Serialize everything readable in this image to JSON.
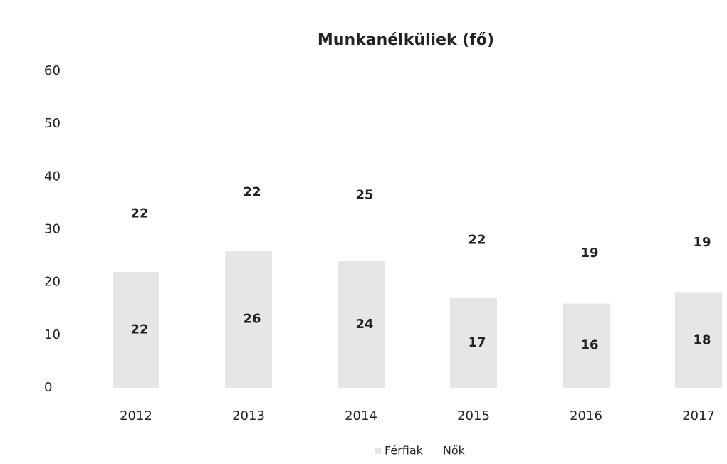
{
  "chart_data": {
    "type": "stacked_bar",
    "title": "Munkanélküliek (fő)",
    "categories": [
      "2012",
      "2013",
      "2014",
      "2015",
      "2016",
      "2017"
    ],
    "series": [
      {
        "name": "Férfiak",
        "color": "#e6e6e6",
        "values": [
          22,
          26,
          24,
          17,
          16,
          18
        ]
      },
      {
        "name": "Nők",
        "color": "#ffffff",
        "values": [
          22,
          22,
          25,
          22,
          19,
          19
        ]
      }
    ],
    "ylim": [
      0,
      60
    ],
    "yticks": [
      0,
      10,
      20,
      30,
      40,
      50,
      60
    ],
    "grid": false,
    "legend": "bottom"
  }
}
